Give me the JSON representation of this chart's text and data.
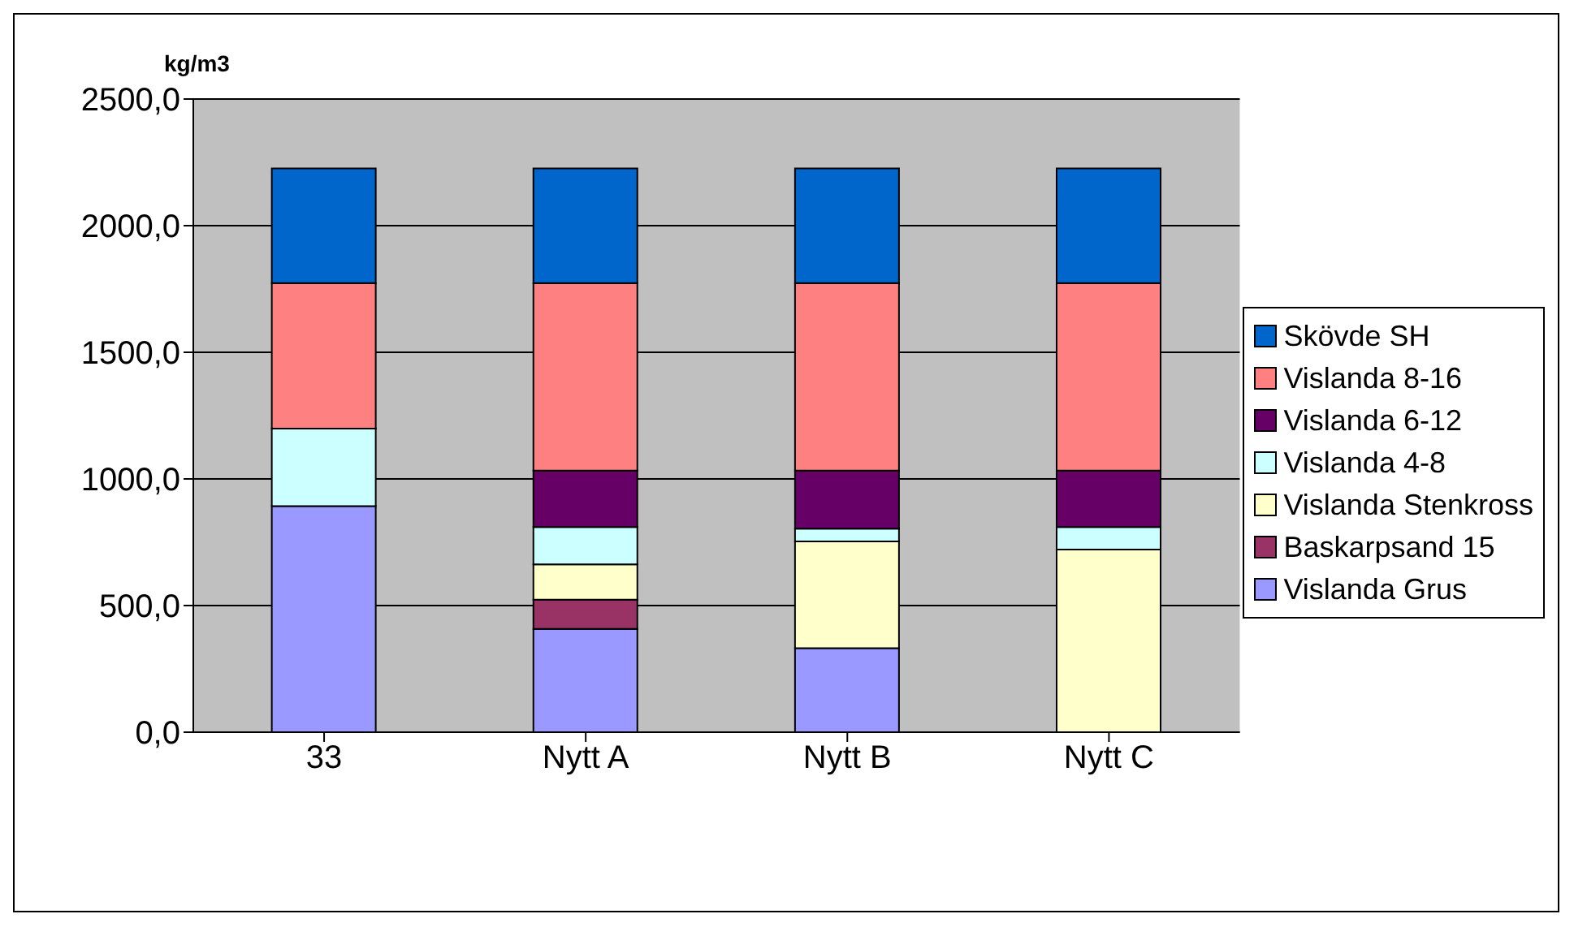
{
  "chart_data": {
    "type": "bar",
    "stacked": true,
    "ylabel": "kg/m3",
    "categories": [
      "33",
      "Nytt A",
      "Nytt B",
      "Nytt C"
    ],
    "series": [
      {
        "name": "Vislanda Grus",
        "color": "#9999ff",
        "values": [
          893,
          408,
          332,
          0
        ]
      },
      {
        "name": "Baskarpsand 15",
        "color": "#993366",
        "values": [
          0,
          115,
          0,
          0
        ]
      },
      {
        "name": "Vislanda Stenkross",
        "color": "#ffffcc",
        "values": [
          0,
          140,
          421,
          721
        ]
      },
      {
        "name": "Vislanda 4-8",
        "color": "#ccffff",
        "values": [
          306,
          147,
          51,
          89
        ]
      },
      {
        "name": "Vislanda 6-12",
        "color": "#660066",
        "values": [
          0,
          223,
          229,
          223
        ]
      },
      {
        "name": "Vislanda 8-16",
        "color": "#ff8080",
        "values": [
          574,
          740,
          740,
          740
        ]
      },
      {
        "name": "Skövde SH",
        "color": "#0066cc",
        "values": [
          453,
          453,
          453,
          453
        ]
      }
    ],
    "ylim": [
      0,
      2500
    ],
    "yticks": [
      {
        "value": 0,
        "label": "0,0"
      },
      {
        "value": 500,
        "label": "500,0"
      },
      {
        "value": 1000,
        "label": "1000,0"
      },
      {
        "value": 1500,
        "label": "1500,0"
      },
      {
        "value": 2000,
        "label": "2000,0"
      },
      {
        "value": 2500,
        "label": "2500,0"
      }
    ],
    "grid": "y",
    "legend": "right"
  }
}
